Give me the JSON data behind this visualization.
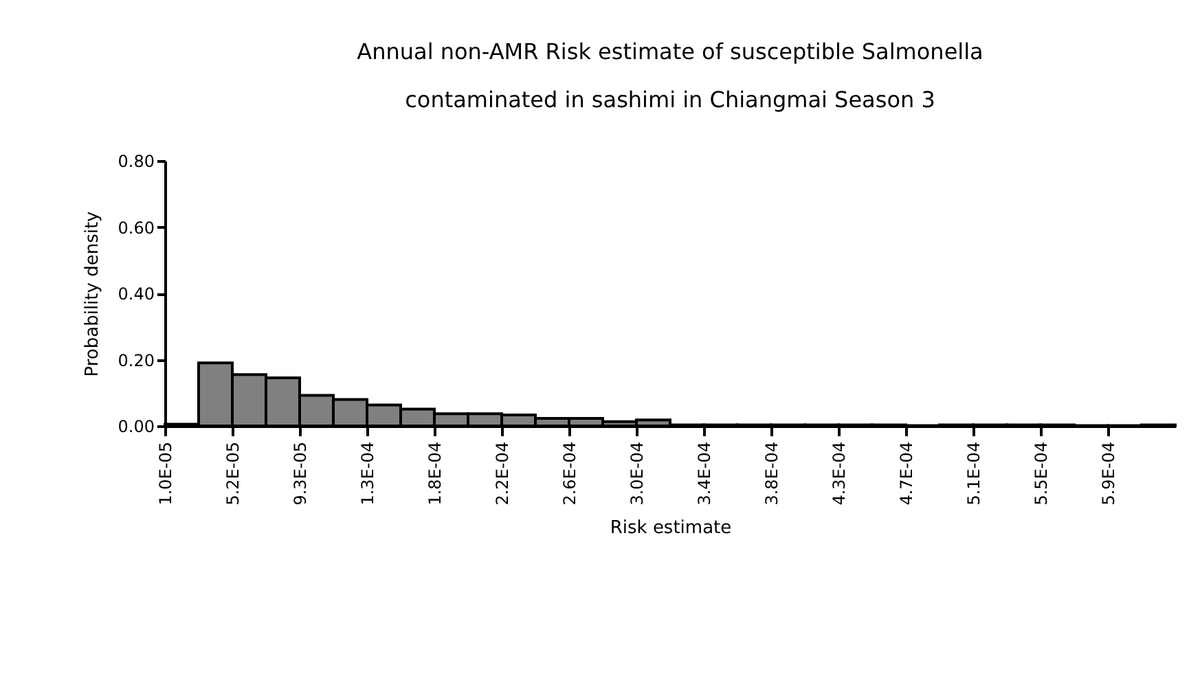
{
  "chart_data": {
    "type": "histogram",
    "title": [
      "Annual non-AMR Risk estimate of susceptible Salmonella",
      "contaminated in sashimi in Chiangmai Season 3"
    ],
    "xlabel": "Risk estimate",
    "ylabel": "Probability density",
    "bins": [
      1e-05,
      3.075e-05,
      5.15e-05,
      7.225e-05,
      9.3e-05,
      0.00011375,
      0.0001345,
      0.00015525,
      0.000176,
      0.00019675,
      0.0002175,
      0.00023825,
      0.000259,
      0.00027975,
      0.0003005,
      0.00032125,
      0.000342,
      0.00036275,
      0.0003835,
      0.00040425,
      0.000425,
      0.00044575,
      0.0004665,
      0.00048725,
      0.000508,
      0.00052875,
      0.0005495,
      0.00057025,
      0.000591,
      0.00061175,
      0.0006325
    ],
    "values": [
      0.005,
      0.19,
      0.155,
      0.145,
      0.092,
      0.08,
      0.063,
      0.051,
      0.037,
      0.037,
      0.033,
      0.023,
      0.023,
      0.013,
      0.018,
      0.003,
      0.003,
      0.003,
      0.003,
      0.003,
      0.003,
      0.003,
      0.001,
      0.003,
      0.003,
      0.003,
      0.003,
      0.001,
      0.001,
      0.003
    ],
    "color": "#808080",
    "xlim": [
      1e-05,
      0.0006325
    ],
    "xticks": [
      {
        "value": 1e-05,
        "label": "1.0E-05"
      },
      {
        "value": 5.15e-05,
        "label": "5.2E-05"
      },
      {
        "value": 9.3e-05,
        "label": "9.3E-05"
      },
      {
        "value": 0.0001345,
        "label": "1.3E-04"
      },
      {
        "value": 0.000176,
        "label": "1.8E-04"
      },
      {
        "value": 0.0002175,
        "label": "2.2E-04"
      },
      {
        "value": 0.000259,
        "label": "2.6E-04"
      },
      {
        "value": 0.0003005,
        "label": "3.0E-04"
      },
      {
        "value": 0.000342,
        "label": "3.4E-04"
      },
      {
        "value": 0.0003835,
        "label": "3.8E-04"
      },
      {
        "value": 0.000425,
        "label": "4.3E-04"
      },
      {
        "value": 0.0004665,
        "label": "4.7E-04"
      },
      {
        "value": 0.000508,
        "label": "5.1E-04"
      },
      {
        "value": 0.0005495,
        "label": "5.5E-04"
      },
      {
        "value": 0.000591,
        "label": "5.9E-04"
      }
    ],
    "ylim": [
      0,
      0.8
    ],
    "yticks": [
      {
        "value": 0,
        "label": "0.00"
      },
      {
        "value": 0.2,
        "label": "0.20"
      },
      {
        "value": 0.4,
        "label": "0.40"
      },
      {
        "value": 0.6,
        "label": "0.60"
      },
      {
        "value": 0.8,
        "label": "0.80"
      }
    ],
    "grid": false
  }
}
